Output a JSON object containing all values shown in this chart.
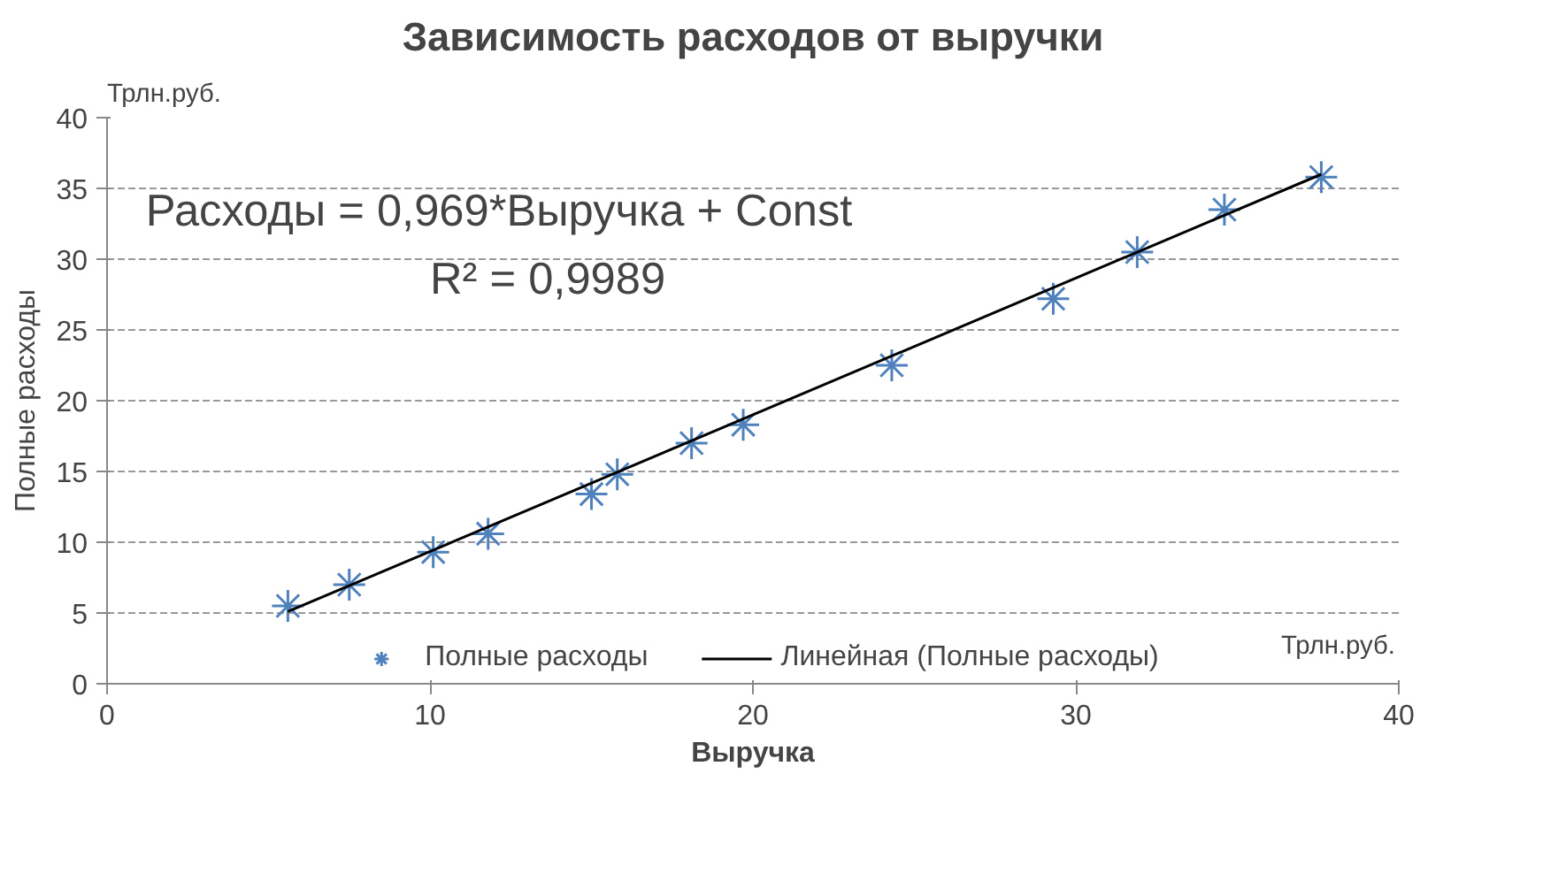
{
  "chart_data": {
    "type": "scatter",
    "title": "Зависимость расходов от выручки",
    "xlabel": "Выручка",
    "ylabel": "Полные расходы",
    "annotations": [
      "Трлн.руб.",
      "Трлн.руб.",
      "Расходы = 0,969*Выручка + Const",
      "R² = 0,9989"
    ],
    "xlim": [
      0,
      40
    ],
    "xticks": [
      0,
      10,
      20,
      30,
      40
    ],
    "ylim": [
      0,
      40
    ],
    "yticks": [
      0,
      5,
      10,
      15,
      20,
      25,
      30,
      35,
      40
    ],
    "grid": "y",
    "legend": "bottom",
    "series": [
      {
        "name": "Полные расходы",
        "color": "#4f81bd",
        "marker": "cross",
        "x": [
          5.6,
          7.5,
          10.1,
          11.8,
          15.0,
          15.8,
          18.1,
          19.7,
          24.3,
          29.3,
          31.9,
          34.6,
          37.6
        ],
        "values": [
          5.5,
          7.0,
          9.3,
          10.6,
          13.4,
          14.8,
          17.0,
          18.3,
          22.5,
          27.2,
          30.5,
          33.5,
          35.8
        ]
      },
      {
        "name": "Линейная (Полные расходы)",
        "type": "line",
        "color": "#000000",
        "line_style": "solid",
        "x": [
          5.6,
          37.6
        ],
        "values": [
          5.1,
          36.0
        ]
      }
    ]
  }
}
